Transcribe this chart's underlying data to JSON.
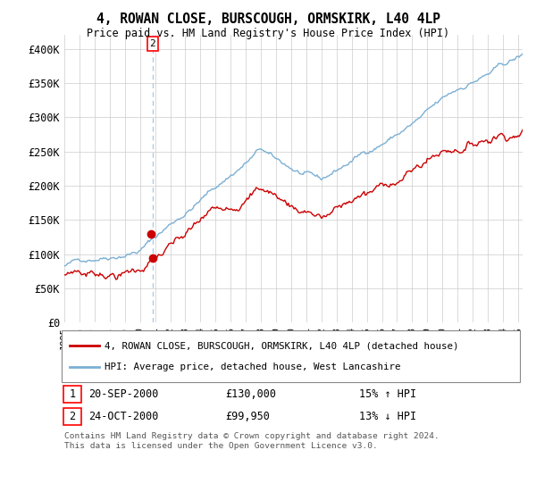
{
  "title": "4, ROWAN CLOSE, BURSCOUGH, ORMSKIRK, L40 4LP",
  "subtitle": "Price paid vs. HM Land Registry's House Price Index (HPI)",
  "ylim": [
    0,
    420000
  ],
  "yticks": [
    0,
    50000,
    100000,
    150000,
    200000,
    250000,
    300000,
    350000,
    400000
  ],
  "ytick_labels": [
    "£0",
    "£50K",
    "£100K",
    "£150K",
    "£200K",
    "£250K",
    "£300K",
    "£350K",
    "£400K"
  ],
  "hpi_color": "#7bafd4",
  "price_color": "#cc0000",
  "vline_color": "#aacce8",
  "t2_x": 2001.0,
  "t2_price": 99950,
  "t1_price": 130000,
  "transaction1": {
    "date_label": "20-SEP-2000",
    "price_str": "£130,000",
    "hpi_pct": "15% ↑ HPI",
    "number": "1"
  },
  "transaction2": {
    "date_label": "24-OCT-2000",
    "price_str": "£99,950",
    "hpi_pct": "13% ↓ HPI",
    "number": "2"
  },
  "legend_property": "4, ROWAN CLOSE, BURSCOUGH, ORMSKIRK, L40 4LP (detached house)",
  "legend_hpi": "HPI: Average price, detached house, West Lancashire",
  "footer": "Contains HM Land Registry data © Crown copyright and database right 2024.\nThis data is licensed under the Open Government Licence v3.0.",
  "background_color": "#ffffff",
  "grid_color": "#cccccc",
  "xlim_left": 1995,
  "xlim_right": 2025.3
}
